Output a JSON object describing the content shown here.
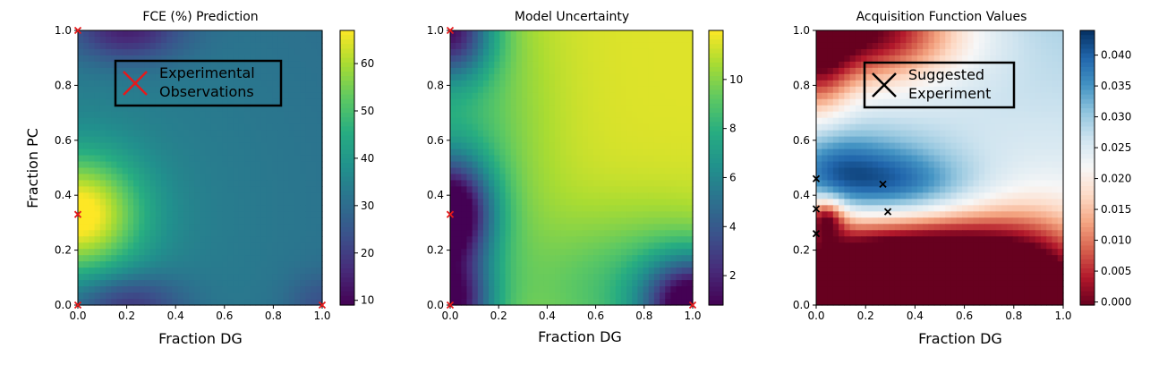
{
  "chart_data": [
    {
      "type": "heatmap",
      "title": "FCE (%) Prediction",
      "xlabel": "Fraction DG",
      "ylabel": "Fraction PC",
      "xlim": [
        0,
        1
      ],
      "ylim": [
        0,
        1
      ],
      "x_ticks": [
        "0.0",
        "0.2",
        "0.4",
        "0.6",
        "0.8",
        "1.0"
      ],
      "y_ticks": [
        "0.0",
        "0.2",
        "0.4",
        "0.6",
        "0.8",
        "1.0"
      ],
      "colormap": "viridis",
      "colorbar_range": [
        9,
        67
      ],
      "colorbar_ticks": [
        {
          "value": 10,
          "label": "10"
        },
        {
          "value": 20,
          "label": "20"
        },
        {
          "value": 30,
          "label": "30"
        },
        {
          "value": 40,
          "label": "40"
        },
        {
          "value": 50,
          "label": "50"
        },
        {
          "value": 60,
          "label": "60"
        }
      ],
      "field": {
        "background": 30,
        "gradient_y": 0,
        "features": [
          {
            "x": 0.0,
            "y": 0.33,
            "amp": 35,
            "sx": 0.18,
            "sy": 0.15
          },
          {
            "x": 0.2,
            "y": 1.0,
            "amp": -18,
            "sx": 0.16,
            "sy": 0.08
          },
          {
            "x": 0.2,
            "y": 0.0,
            "amp": -16,
            "sx": 0.16,
            "sy": 0.08
          },
          {
            "x": 1.0,
            "y": 0.0,
            "amp": -8,
            "sx": 0.1,
            "sy": 0.08
          },
          {
            "x": 0.0,
            "y": 0.33,
            "amp": 5,
            "sx": 0.7,
            "sy": 0.6
          }
        ]
      },
      "points": [
        {
          "x": 0.0,
          "y": 1.0
        },
        {
          "x": 0.0,
          "y": 0.33
        },
        {
          "x": 0.0,
          "y": 0.0
        },
        {
          "x": 1.0,
          "y": 0.0
        }
      ],
      "point_color": "#e41a1c",
      "legend": {
        "label": "Experimental\nObservations",
        "color": "#e41a1c",
        "placement": "upper-center"
      }
    },
    {
      "type": "heatmap",
      "title": "Model Uncertainty",
      "xlabel": "Fraction DG",
      "ylabel": "",
      "xlim": [
        0,
        1
      ],
      "ylim": [
        0,
        1
      ],
      "x_ticks": [
        "0.0",
        "0.2",
        "0.4",
        "0.6",
        "0.8",
        "1.0"
      ],
      "y_ticks": [
        "0.0",
        "0.2",
        "0.4",
        "0.6",
        "0.8",
        "1.0"
      ],
      "colormap": "viridis",
      "colorbar_range": [
        0.8,
        12
      ],
      "colorbar_ticks": [
        {
          "value": 2,
          "label": "2"
        },
        {
          "value": 4,
          "label": "4"
        },
        {
          "value": 6,
          "label": "6"
        },
        {
          "value": 8,
          "label": "8"
        },
        {
          "value": 10,
          "label": "10"
        }
      ],
      "field": {
        "background": 11.5,
        "gradient_y": 0,
        "features": [
          {
            "x": 0.0,
            "y": 0.33,
            "amp": -10.5,
            "sx": 0.12,
            "sy": 0.14
          },
          {
            "x": 0.0,
            "y": 1.0,
            "amp": -8,
            "sx": 0.12,
            "sy": 0.12
          },
          {
            "x": 0.0,
            "y": 0.0,
            "amp": -9,
            "sx": 0.12,
            "sy": 0.12
          },
          {
            "x": 1.0,
            "y": 0.0,
            "amp": -10,
            "sx": 0.14,
            "sy": 0.12
          },
          {
            "x": 0.0,
            "y": 0.6,
            "amp": -3,
            "sx": 0.25,
            "sy": 0.5
          },
          {
            "x": 0.8,
            "y": 0.05,
            "amp": -3,
            "sx": 0.35,
            "sy": 0.2
          }
        ]
      },
      "points": [
        {
          "x": 0.0,
          "y": 1.0
        },
        {
          "x": 0.0,
          "y": 0.33
        },
        {
          "x": 0.0,
          "y": 0.0
        },
        {
          "x": 1.0,
          "y": 0.0
        }
      ],
      "point_color": "#e41a1c"
    },
    {
      "type": "heatmap",
      "title": "Acquisition Function Values",
      "xlabel": "Fraction DG",
      "ylabel": "",
      "xlim": [
        0,
        1
      ],
      "ylim": [
        0,
        1
      ],
      "x_ticks": [
        "0.0",
        "0.2",
        "0.4",
        "0.6",
        "0.8",
        "1.0"
      ],
      "y_ticks": [
        "0.0",
        "0.2",
        "0.4",
        "0.6",
        "0.8",
        "1.0"
      ],
      "colormap": "RdBu",
      "colorbar_range": [
        -0.0005,
        0.044
      ],
      "colorbar_ticks": [
        {
          "value": 0.0,
          "label": "0.000"
        },
        {
          "value": 0.005,
          "label": "0.005"
        },
        {
          "value": 0.01,
          "label": "0.010"
        },
        {
          "value": 0.015,
          "label": "0.015"
        },
        {
          "value": 0.02,
          "label": "0.020"
        },
        {
          "value": 0.025,
          "label": "0.025"
        },
        {
          "value": 0.03,
          "label": "0.030"
        },
        {
          "value": 0.035,
          "label": "0.035"
        },
        {
          "value": 0.04,
          "label": "0.040"
        }
      ],
      "field": {
        "background": 0.025,
        "gradient_y": 0.004,
        "features": [
          {
            "x": 0.22,
            "y": 0.45,
            "amp": 0.016,
            "sx": 0.22,
            "sy": 0.11
          },
          {
            "x": 0.45,
            "y": 0.4,
            "amp": 0.008,
            "sx": 0.22,
            "sy": 0.09
          },
          {
            "x": 0.05,
            "y": 0.5,
            "amp": 0.006,
            "sx": 0.12,
            "sy": 0.12
          },
          {
            "x": 0.18,
            "y": 1.0,
            "amp": -0.03,
            "sx": 0.28,
            "sy": 0.13
          },
          {
            "x": 0.0,
            "y": 0.85,
            "amp": -0.015,
            "sx": 0.1,
            "sy": 0.14
          },
          {
            "x": 0.15,
            "y": 0.05,
            "amp": -0.034,
            "sx": 0.3,
            "sy": 0.2
          },
          {
            "x": 0.88,
            "y": 0.0,
            "amp": -0.03,
            "sx": 0.2,
            "sy": 0.2
          },
          {
            "x": 0.55,
            "y": 0.15,
            "amp": -0.018,
            "sx": 0.22,
            "sy": 0.15
          },
          {
            "x": 0.04,
            "y": 0.32,
            "amp": -0.018,
            "sx": 0.05,
            "sy": 0.05
          }
        ]
      },
      "points": [
        {
          "x": 0.0,
          "y": 0.46
        },
        {
          "x": 0.0,
          "y": 0.35
        },
        {
          "x": 0.0,
          "y": 0.26
        },
        {
          "x": 0.27,
          "y": 0.44
        },
        {
          "x": 0.29,
          "y": 0.34
        }
      ],
      "point_color": "#000000",
      "legend": {
        "label": "Suggested\nExperiment",
        "color": "#000000",
        "placement": "upper-center"
      }
    }
  ]
}
